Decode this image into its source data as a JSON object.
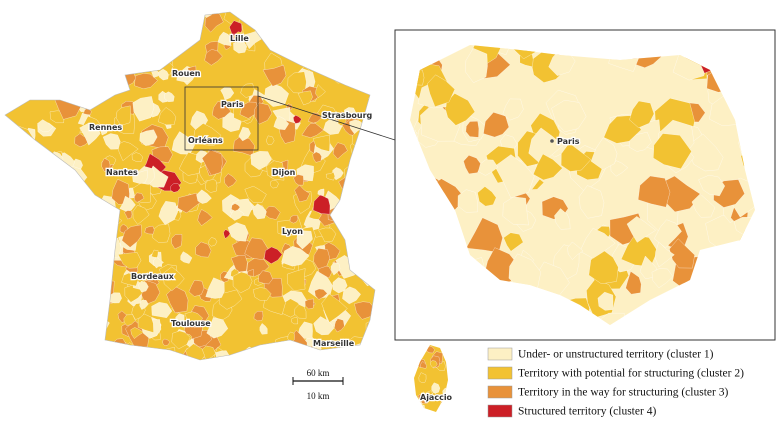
{
  "map": {
    "cities": [
      "Lille",
      "Rouen",
      "Paris",
      "Strasbourg",
      "Rennes",
      "Orléans",
      "Nantes",
      "Dijon",
      "Lyon",
      "Bordeaux",
      "Toulouse",
      "Marseille"
    ],
    "inset_city": "Paris",
    "corsica_city": "Ajaccio",
    "scale": {
      "main": "60 km",
      "inset": "10 km"
    }
  },
  "legend": {
    "items": [
      {
        "label": "Under- or unstructured territory (cluster 1)",
        "color": "#fdf0c4"
      },
      {
        "label": "Territory with potential for structuring (cluster 2)",
        "color": "#f2c232"
      },
      {
        "label": "Territory in the way for structuring (cluster 3)",
        "color": "#e8923a"
      },
      {
        "label": "Structured territory (cluster 4)",
        "color": "#cc1f26"
      }
    ]
  }
}
